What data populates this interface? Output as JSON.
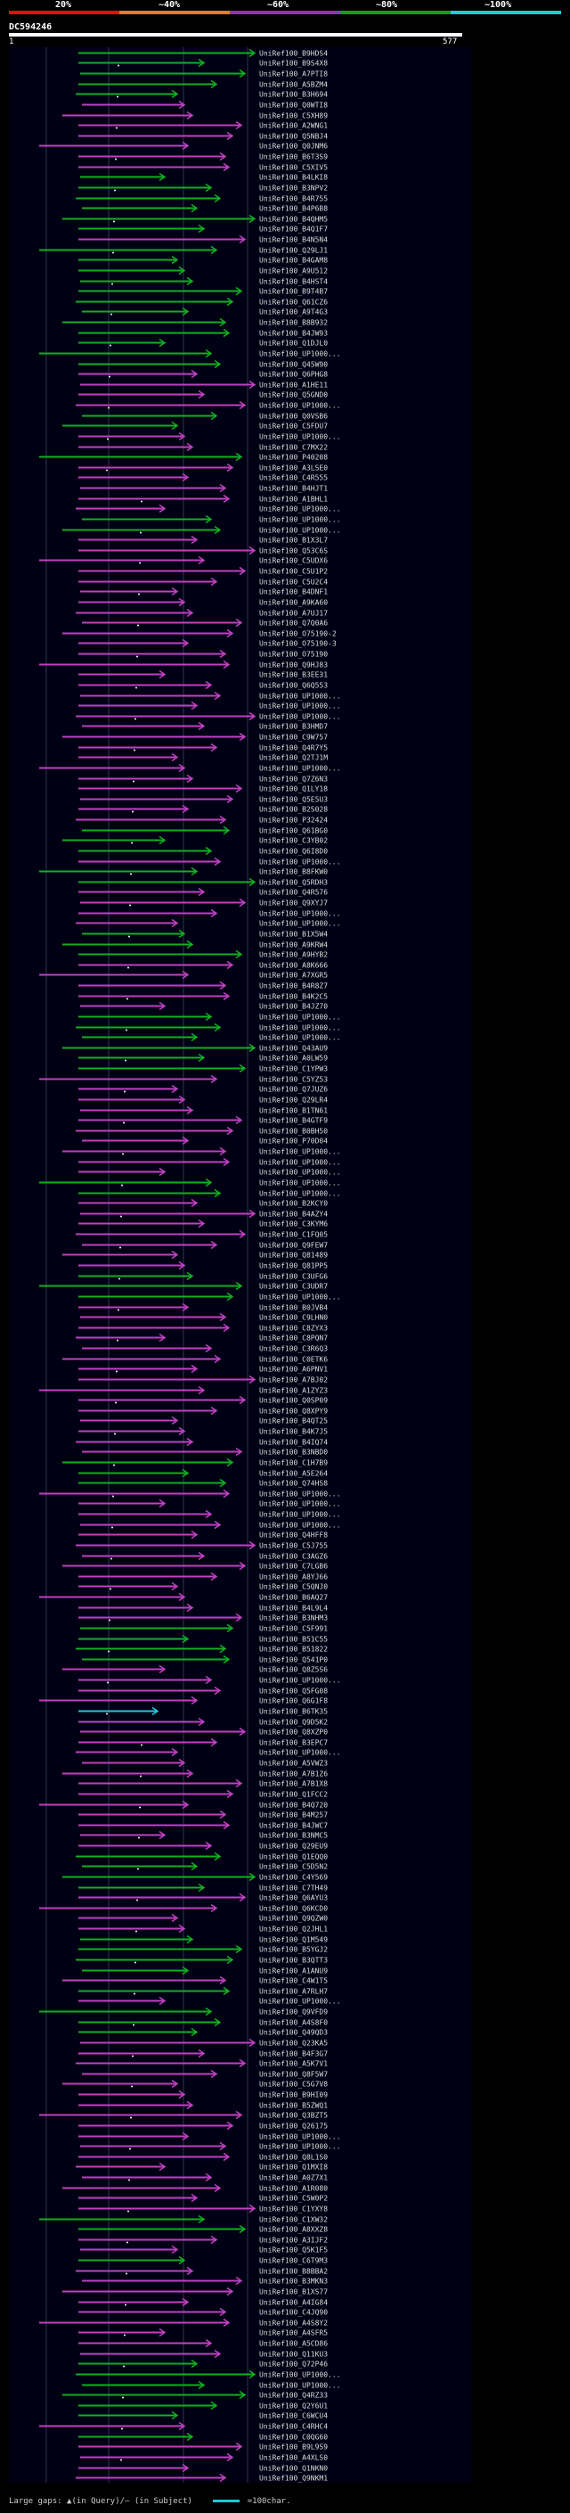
{
  "legend": {
    "ticks": [
      "20%",
      "~40%",
      "~60%",
      "~80%",
      "~100%"
    ],
    "colors": [
      "#e01010",
      "#f07820",
      "#9030c0",
      "#10a020",
      "#20c8e0"
    ]
  },
  "query": {
    "name": "DC594246",
    "start": "1",
    "end": "577"
  },
  "footer": {
    "gaps_text": "Large gaps: ▲(in Query)/– (in Subject)",
    "scale_text": "=100char."
  },
  "hit_colors": {
    "green": "#10b020",
    "magenta": "#c040c0",
    "cyan": "#20c8e0"
  },
  "hits": [
    {
      "id": "UniRef100_B9HDS4",
      "color": "green"
    },
    {
      "id": "UniRef100_B9S4X8",
      "color": "green"
    },
    {
      "id": "UniRef100_A7PTI8",
      "color": "green"
    },
    {
      "id": "UniRef100_A5BZM4",
      "color": "green"
    },
    {
      "id": "UniRef100_B3H694",
      "color": "green"
    },
    {
      "id": "UniRef100_Q0WTI8",
      "color": "magenta"
    },
    {
      "id": "UniRef100_C5XH89",
      "color": "magenta"
    },
    {
      "id": "UniRef100_A2WNG1",
      "color": "magenta"
    },
    {
      "id": "UniRef100_Q5NBJ4",
      "color": "magenta"
    },
    {
      "id": "UniRef100_Q0JNM6",
      "color": "magenta"
    },
    {
      "id": "UniRef100_B6T3S9",
      "color": "magenta"
    },
    {
      "id": "UniRef100_C5XIV5",
      "color": "magenta"
    },
    {
      "id": "UniRef100_B4LKI8",
      "color": "green"
    },
    {
      "id": "UniRef100_B3NPV2",
      "color": "green"
    },
    {
      "id": "UniRef100_B4R755",
      "color": "green"
    },
    {
      "id": "UniRef100_B4P6B8",
      "color": "green"
    },
    {
      "id": "UniRef100_B4QHM5",
      "color": "green"
    },
    {
      "id": "UniRef100_B4Q1F7",
      "color": "green"
    },
    {
      "id": "UniRef100_B4N5N4",
      "color": "magenta"
    },
    {
      "id": "UniRef100_Q29LJ1",
      "color": "green"
    },
    {
      "id": "UniRef100_B4GAM8",
      "color": "green"
    },
    {
      "id": "UniRef100_A9U512",
      "color": "green"
    },
    {
      "id": "UniRef100_B4HST4",
      "color": "green"
    },
    {
      "id": "UniRef100_B9T4B7",
      "color": "green"
    },
    {
      "id": "UniRef100_Q61CZ6",
      "color": "green"
    },
    {
      "id": "UniRef100_A9T4G3",
      "color": "green"
    },
    {
      "id": "UniRef100_B8B932",
      "color": "green"
    },
    {
      "id": "UniRef100_B4JW93",
      "color": "green"
    },
    {
      "id": "UniRef100_Q1DJL0",
      "color": "green"
    },
    {
      "id": "UniRef100_UP1000...",
      "color": "green"
    },
    {
      "id": "UniRef100_Q45W90",
      "color": "green"
    },
    {
      "id": "UniRef100_Q6PHG8",
      "color": "magenta"
    },
    {
      "id": "UniRef100_A1HE11",
      "color": "magenta"
    },
    {
      "id": "UniRef100_Q5GND0",
      "color": "magenta"
    },
    {
      "id": "UniRef100_UP1000...",
      "color": "magenta"
    },
    {
      "id": "UniRef100_Q0VSB6",
      "color": "green"
    },
    {
      "id": "UniRef100_C5FDU7",
      "color": "green"
    },
    {
      "id": "UniRef100_UP1000...",
      "color": "magenta"
    },
    {
      "id": "UniRef100_C7MX22",
      "color": "magenta"
    },
    {
      "id": "UniRef100_P40208",
      "color": "green"
    },
    {
      "id": "UniRef100_A3LSE0",
      "color": "magenta"
    },
    {
      "id": "UniRef100_C4R555",
      "color": "magenta"
    },
    {
      "id": "UniRef100_B4HJT1",
      "color": "magenta"
    },
    {
      "id": "UniRef100_A1BHL1",
      "color": "magenta"
    },
    {
      "id": "UniRef100_UP1000...",
      "color": "magenta"
    },
    {
      "id": "UniRef100_UP1000...",
      "color": "green"
    },
    {
      "id": "UniRef100_UP1000...",
      "color": "green"
    },
    {
      "id": "UniRef100_B1X3L7",
      "color": "magenta"
    },
    {
      "id": "UniRef100_Q53C6S",
      "color": "magenta"
    },
    {
      "id": "UniRef100_C5UDX6",
      "color": "magenta"
    },
    {
      "id": "UniRef100_C5U1P2",
      "color": "magenta"
    },
    {
      "id": "UniRef100_C5U2C4",
      "color": "magenta"
    },
    {
      "id": "UniRef100_B4DNF1",
      "color": "magenta"
    },
    {
      "id": "UniRef100_A9KA60",
      "color": "magenta"
    },
    {
      "id": "UniRef100_A7UJ17",
      "color": "magenta"
    },
    {
      "id": "UniRef100_Q7Q0A6",
      "color": "magenta"
    },
    {
      "id": "UniRef100_O75190-2",
      "color": "magenta"
    },
    {
      "id": "UniRef100_O75190-3",
      "color": "magenta"
    },
    {
      "id": "UniRef100_O75190",
      "color": "magenta"
    },
    {
      "id": "UniRef100_Q9HJ83",
      "color": "magenta"
    },
    {
      "id": "UniRef100_B3EE31",
      "color": "magenta"
    },
    {
      "id": "UniRef100_Q6Q553",
      "color": "magenta"
    },
    {
      "id": "UniRef100_UP1000...",
      "color": "magenta"
    },
    {
      "id": "UniRef100_UP1000...",
      "color": "magenta"
    },
    {
      "id": "UniRef100_UP1000...",
      "color": "magenta"
    },
    {
      "id": "UniRef100_B3HMD7",
      "color": "magenta"
    },
    {
      "id": "UniRef100_C9W757",
      "color": "magenta"
    },
    {
      "id": "UniRef100_Q4R7Y5",
      "color": "magenta"
    },
    {
      "id": "UniRef100_Q2TJ1M",
      "color": "magenta"
    },
    {
      "id": "UniRef100_UP1000...",
      "color": "magenta"
    },
    {
      "id": "UniRef100_Q7Z6N3",
      "color": "magenta"
    },
    {
      "id": "UniRef100_Q1LY18",
      "color": "magenta"
    },
    {
      "id": "UniRef100_Q5E5U3",
      "color": "magenta"
    },
    {
      "id": "UniRef100_B2S028",
      "color": "magenta"
    },
    {
      "id": "UniRef100_P32424",
      "color": "magenta"
    },
    {
      "id": "UniRef100_Q61BG0",
      "color": "green"
    },
    {
      "id": "UniRef100_C3YB02",
      "color": "green"
    },
    {
      "id": "UniRef100_Q6I8D0",
      "color": "green"
    },
    {
      "id": "UniRef100_UP1000...",
      "color": "magenta"
    },
    {
      "id": "UniRef100_B8FKW0",
      "color": "green"
    },
    {
      "id": "UniRef100_Q5RDH3",
      "color": "green"
    },
    {
      "id": "UniRef100_Q4R576",
      "color": "magenta"
    },
    {
      "id": "UniRef100_Q9XYJ7",
      "color": "magenta"
    },
    {
      "id": "UniRef100_UP1000...",
      "color": "magenta"
    },
    {
      "id": "UniRef100_UP1000...",
      "color": "magenta"
    },
    {
      "id": "UniRef100_B1X5W4",
      "color": "green"
    },
    {
      "id": "UniRef100_A9KRW4",
      "color": "green"
    },
    {
      "id": "UniRef100_A9HYB2",
      "color": "green"
    },
    {
      "id": "UniRef100_A8K666",
      "color": "magenta"
    },
    {
      "id": "UniRef100_A7XGR5",
      "color": "magenta"
    },
    {
      "id": "UniRef100_B4R8Z7",
      "color": "magenta"
    },
    {
      "id": "UniRef100_B4K2C5",
      "color": "magenta"
    },
    {
      "id": "UniRef100_B4JZ70",
      "color": "magenta"
    },
    {
      "id": "UniRef100_UP1000...",
      "color": "green"
    },
    {
      "id": "UniRef100_UP1000...",
      "color": "green"
    },
    {
      "id": "UniRef100_UP1000...",
      "color": "green"
    },
    {
      "id": "UniRef100_Q43AU9",
      "color": "green"
    },
    {
      "id": "UniRef100_A0LW59",
      "color": "green"
    },
    {
      "id": "UniRef100_C1YPW3",
      "color": "green"
    },
    {
      "id": "UniRef100_C5YZ53",
      "color": "magenta"
    },
    {
      "id": "UniRef100_Q7JUZ6",
      "color": "magenta"
    },
    {
      "id": "UniRef100_Q29LR4",
      "color": "magenta"
    },
    {
      "id": "UniRef100_B1TN61",
      "color": "magenta"
    },
    {
      "id": "UniRef100_B4GTF9",
      "color": "magenta"
    },
    {
      "id": "UniRef100_B0BH50",
      "color": "magenta"
    },
    {
      "id": "UniRef100_P70D04",
      "color": "magenta"
    },
    {
      "id": "UniRef100_UP1000...",
      "color": "magenta"
    },
    {
      "id": "UniRef100_UP1000...",
      "color": "magenta"
    },
    {
      "id": "UniRef100_UP1000...",
      "color": "magenta"
    },
    {
      "id": "UniRef100_UP1000...",
      "color": "green"
    },
    {
      "id": "UniRef100_UP1000...",
      "color": "green"
    },
    {
      "id": "UniRef100_B2KCY0",
      "color": "magenta"
    },
    {
      "id": "UniRef100_B4AZY4",
      "color": "magenta"
    },
    {
      "id": "UniRef100_C3KYM6",
      "color": "magenta"
    },
    {
      "id": "UniRef100_C1FQ05",
      "color": "magenta"
    },
    {
      "id": "UniRef100_Q9FEW7",
      "color": "magenta"
    },
    {
      "id": "UniRef100_Q81489",
      "color": "magenta"
    },
    {
      "id": "UniRef100_Q81PP5",
      "color": "magenta"
    },
    {
      "id": "UniRef100_C3UFG6",
      "color": "green"
    },
    {
      "id": "UniRef100_C3UDR7",
      "color": "green"
    },
    {
      "id": "UniRef100_UP1000...",
      "color": "green"
    },
    {
      "id": "UniRef100_B0JVB4",
      "color": "magenta"
    },
    {
      "id": "UniRef100_C9LHN0",
      "color": "magenta"
    },
    {
      "id": "UniRef100_C8ZYX3",
      "color": "magenta"
    },
    {
      "id": "UniRef100_C8PQN7",
      "color": "magenta"
    },
    {
      "id": "UniRef100_C3R6Q3",
      "color": "magenta"
    },
    {
      "id": "UniRef100_C0ETK6",
      "color": "magenta"
    },
    {
      "id": "UniRef100_A6PNV1",
      "color": "magenta"
    },
    {
      "id": "UniRef100_A7BJ02",
      "color": "magenta"
    },
    {
      "id": "UniRef100_A1ZYZ3",
      "color": "magenta"
    },
    {
      "id": "UniRef100_Q0SP09",
      "color": "magenta"
    },
    {
      "id": "UniRef100_Q8XPY9",
      "color": "magenta"
    },
    {
      "id": "UniRef100_B4QT25",
      "color": "magenta"
    },
    {
      "id": "UniRef100_B4K7J5",
      "color": "magenta"
    },
    {
      "id": "UniRef100_B4IQ74",
      "color": "magenta"
    },
    {
      "id": "UniRef100_B3NBD0",
      "color": "magenta"
    },
    {
      "id": "UniRef100_C1H7B9",
      "color": "green"
    },
    {
      "id": "UniRef100_A5E264",
      "color": "green"
    },
    {
      "id": "UniRef100_Q74HS8",
      "color": "green"
    },
    {
      "id": "UniRef100_UP1000...",
      "color": "magenta"
    },
    {
      "id": "UniRef100_UP1000...",
      "color": "magenta"
    },
    {
      "id": "UniRef100_UP1000...",
      "color": "magenta"
    },
    {
      "id": "UniRef100_UP1000...",
      "color": "magenta"
    },
    {
      "id": "UniRef100_Q4HFF8",
      "color": "magenta"
    },
    {
      "id": "UniRef100_C5J755",
      "color": "magenta"
    },
    {
      "id": "UniRef100_C3AGZ6",
      "color": "magenta"
    },
    {
      "id": "UniRef100_C7LGB6",
      "color": "magenta"
    },
    {
      "id": "UniRef100_A8YJ66",
      "color": "magenta"
    },
    {
      "id": "UniRef100_C5QNJ0",
      "color": "magenta"
    },
    {
      "id": "UniRef100_B6AQ27",
      "color": "magenta"
    },
    {
      "id": "UniRef100_B4L9L4",
      "color": "magenta"
    },
    {
      "id": "UniRef100_B3NHM3",
      "color": "magenta"
    },
    {
      "id": "UniRef100_C5F991",
      "color": "green"
    },
    {
      "id": "UniRef100_B51C55",
      "color": "green"
    },
    {
      "id": "UniRef100_B51822",
      "color": "green"
    },
    {
      "id": "UniRef100_Q541P0",
      "color": "green"
    },
    {
      "id": "UniRef100_Q8Z5S6",
      "color": "magenta"
    },
    {
      "id": "UniRef100_UP1000...",
      "color": "magenta"
    },
    {
      "id": "UniRef100_Q5FG08",
      "color": "magenta"
    },
    {
      "id": "UniRef100_Q6G1F8",
      "color": "magenta"
    },
    {
      "id": "UniRef100_B6TK35",
      "color": "cyan"
    },
    {
      "id": "UniRef100_Q9D5K2",
      "color": "magenta"
    },
    {
      "id": "UniRef100_Q8XZP0",
      "color": "magenta"
    },
    {
      "id": "UniRef100_B3EPC7",
      "color": "magenta"
    },
    {
      "id": "UniRef100_UP1000...",
      "color": "magenta"
    },
    {
      "id": "UniRef100_A5VWZ3",
      "color": "magenta"
    },
    {
      "id": "UniRef100_A7B1Z6",
      "color": "magenta"
    },
    {
      "id": "UniRef100_A7B1X8",
      "color": "magenta"
    },
    {
      "id": "UniRef100_Q1FCC2",
      "color": "magenta"
    },
    {
      "id": "UniRef100_B4Q720",
      "color": "magenta"
    },
    {
      "id": "UniRef100_B4M257",
      "color": "magenta"
    },
    {
      "id": "UniRef100_B4JWC7",
      "color": "magenta"
    },
    {
      "id": "UniRef100_B3NMC5",
      "color": "magenta"
    },
    {
      "id": "UniRef100_Q29EU9",
      "color": "magenta"
    },
    {
      "id": "UniRef100_Q1EQQ0",
      "color": "green"
    },
    {
      "id": "UniRef100_C5D5N2",
      "color": "green"
    },
    {
      "id": "UniRef100_C4Y569",
      "color": "green"
    },
    {
      "id": "UniRef100_C7TH49",
      "color": "green"
    },
    {
      "id": "UniRef100_Q6AYU3",
      "color": "magenta"
    },
    {
      "id": "UniRef100_Q6KCD0",
      "color": "magenta"
    },
    {
      "id": "UniRef100_Q9QZW0",
      "color": "magenta"
    },
    {
      "id": "UniRef100_Q2JHL1",
      "color": "magenta"
    },
    {
      "id": "UniRef100_Q1M549",
      "color": "green"
    },
    {
      "id": "UniRef100_B5YGJ2",
      "color": "green"
    },
    {
      "id": "UniRef100_B3QTT3",
      "color": "green"
    },
    {
      "id": "UniRef100_A1ANU9",
      "color": "green"
    },
    {
      "id": "UniRef100_C4W1T5",
      "color": "magenta"
    },
    {
      "id": "UniRef100_A7RLH7",
      "color": "green"
    },
    {
      "id": "UniRef100_UP1000...",
      "color": "magenta"
    },
    {
      "id": "UniRef100_Q9VFD9",
      "color": "green"
    },
    {
      "id": "UniRef100_A4S8F0",
      "color": "green"
    },
    {
      "id": "UniRef100_Q49QD3",
      "color": "green"
    },
    {
      "id": "UniRef100_Q23KA5",
      "color": "magenta"
    },
    {
      "id": "UniRef100_B4F3G7",
      "color": "magenta"
    },
    {
      "id": "UniRef100_A5K7V1",
      "color": "magenta"
    },
    {
      "id": "UniRef100_Q8F5W7",
      "color": "magenta"
    },
    {
      "id": "UniRef100_C5G7V8",
      "color": "magenta"
    },
    {
      "id": "UniRef100_B9HI09",
      "color": "magenta"
    },
    {
      "id": "UniRef100_B5ZWQ1",
      "color": "magenta"
    },
    {
      "id": "UniRef100_Q3BZT5",
      "color": "magenta"
    },
    {
      "id": "UniRef100_Q26175",
      "color": "magenta"
    },
    {
      "id": "UniRef100_UP1000...",
      "color": "magenta"
    },
    {
      "id": "UniRef100_UP1000...",
      "color": "magenta"
    },
    {
      "id": "UniRef100_Q8L1S0",
      "color": "magenta"
    },
    {
      "id": "UniRef100_Q1MXI8",
      "color": "magenta"
    },
    {
      "id": "UniRef100_A0Z7X1",
      "color": "magenta"
    },
    {
      "id": "UniRef100_A1R080",
      "color": "magenta"
    },
    {
      "id": "UniRef100_C5W0P2",
      "color": "magenta"
    },
    {
      "id": "UniRef100_C1YXY8",
      "color": "magenta"
    },
    {
      "id": "UniRef100_C1XW32",
      "color": "green"
    },
    {
      "id": "UniRef100_A8XXZ8",
      "color": "green"
    },
    {
      "id": "UniRef100_A3IJF2",
      "color": "magenta"
    },
    {
      "id": "UniRef100_Q5K1F5",
      "color": "magenta"
    },
    {
      "id": "UniRef100_C6T9M3",
      "color": "green"
    },
    {
      "id": "UniRef100_B8BBA2",
      "color": "magenta"
    },
    {
      "id": "UniRef100_B3MKN3",
      "color": "magenta"
    },
    {
      "id": "UniRef100_B1XS77",
      "color": "magenta"
    },
    {
      "id": "UniRef100_A4IG84",
      "color": "magenta"
    },
    {
      "id": "UniRef100_C4JQ90",
      "color": "magenta"
    },
    {
      "id": "UniRef100_A4S8Y2",
      "color": "magenta"
    },
    {
      "id": "UniRef100_A4SFR5",
      "color": "magenta"
    },
    {
      "id": "UniRef100_A5CD86",
      "color": "magenta"
    },
    {
      "id": "UniRef100_Q11KU3",
      "color": "magenta"
    },
    {
      "id": "UniRef100_Q72P46",
      "color": "green"
    },
    {
      "id": "UniRef100_UP1000...",
      "color": "green"
    },
    {
      "id": "UniRef100_UP1000...",
      "color": "green"
    },
    {
      "id": "UniRef100_Q4RZ33",
      "color": "green"
    },
    {
      "id": "UniRef100_Q2Y6U1",
      "color": "green"
    },
    {
      "id": "UniRef100_C6WCU4",
      "color": "green"
    },
    {
      "id": "UniRef100_C4RHC4",
      "color": "magenta"
    },
    {
      "id": "UniRef100_C0QG60",
      "color": "green"
    },
    {
      "id": "UniRef100_B9L9S9",
      "color": "magenta"
    },
    {
      "id": "UniRef100_A4XLS0",
      "color": "magenta"
    },
    {
      "id": "UniRef100_Q1NKN0",
      "color": "magenta"
    },
    {
      "id": "UniRef100_Q9NKM1",
      "color": "magenta"
    }
  ]
}
